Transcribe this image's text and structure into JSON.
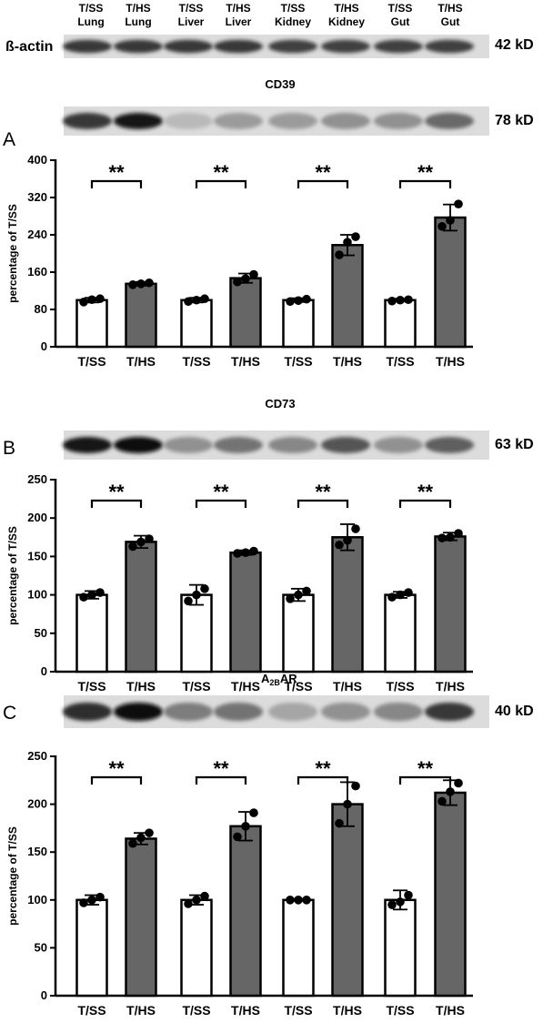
{
  "lane_labels": [
    {
      "top": "T/SS",
      "bottom": "Lung"
    },
    {
      "top": "T/HS",
      "bottom": "Lung"
    },
    {
      "top": "T/SS",
      "bottom": "Liver"
    },
    {
      "top": "T/HS",
      "bottom": "Liver"
    },
    {
      "top": "T/SS",
      "bottom": "Kidney"
    },
    {
      "top": "T/HS",
      "bottom": "Kidney"
    },
    {
      "top": "T/SS",
      "bottom": "Gut"
    },
    {
      "top": "T/HS",
      "bottom": "Gut"
    }
  ],
  "actin": {
    "label": "ß-actin",
    "kd": "42 kD"
  },
  "colors": {
    "ts_bar": "#ffffff",
    "hs_bar": "#666666",
    "axis": "#000000",
    "point": "#000000"
  },
  "panels": [
    {
      "letter": "A",
      "protein": "CD39",
      "kd": "78 kD",
      "blot_intensity": [
        0.8,
        0.95,
        0.15,
        0.3,
        0.3,
        0.35,
        0.35,
        0.55
      ]
    },
    {
      "letter": "B",
      "protein": "CD73",
      "kd": "63 kD",
      "blot_intensity": [
        0.95,
        1.0,
        0.35,
        0.5,
        0.4,
        0.65,
        0.35,
        0.6
      ]
    },
    {
      "letter": "C",
      "protein_main": "A",
      "protein_sub": "2B",
      "protein_tail": "AR",
      "kd": "40 kD",
      "blot_intensity": [
        0.85,
        1.0,
        0.45,
        0.5,
        0.25,
        0.35,
        0.4,
        0.8
      ]
    }
  ],
  "chart_data": [
    {
      "type": "bar",
      "ylabel": "percentage of T/SS",
      "categories": [
        "T/SS",
        "T/HS",
        "T/SS",
        "T/HS",
        "T/SS",
        "T/HS",
        "T/SS",
        "T/HS"
      ],
      "values": [
        100,
        135,
        100,
        147,
        100,
        218,
        100,
        277
      ],
      "errors": [
        5,
        4,
        5,
        10,
        4,
        22,
        3,
        28
      ],
      "points": [
        [
          96,
          101,
          103
        ],
        [
          133,
          135,
          137
        ],
        [
          97,
          100,
          103
        ],
        [
          139,
          146,
          155
        ],
        [
          97,
          99,
          102
        ],
        [
          197,
          224,
          236
        ],
        [
          98,
          100,
          101
        ],
        [
          258,
          271,
          306
        ]
      ],
      "yticks": [
        0,
        80,
        160,
        240,
        320,
        400
      ],
      "ylim": [
        0,
        400
      ],
      "significance": [
        "**",
        "**",
        "**",
        "**"
      ]
    },
    {
      "type": "bar",
      "ylabel": "percentage of T/SS",
      "categories": [
        "T/SS",
        "T/HS",
        "T/SS",
        "T/HS",
        "T/SS",
        "T/HS",
        "T/SS",
        "T/HS"
      ],
      "values": [
        100,
        169,
        100,
        155,
        100,
        175,
        100,
        176
      ],
      "errors": [
        5,
        8,
        13,
        3,
        8,
        17,
        4,
        5
      ],
      "points": [
        [
          97,
          100,
          103
        ],
        [
          163,
          169,
          173
        ],
        [
          92,
          100,
          108
        ],
        [
          154,
          155,
          157
        ],
        [
          95,
          100,
          105
        ],
        [
          165,
          171,
          186
        ],
        [
          97,
          100,
          103
        ],
        [
          174,
          175,
          180
        ]
      ],
      "yticks": [
        0,
        50,
        100,
        150,
        200,
        250
      ],
      "ylim": [
        0,
        250
      ],
      "significance": [
        "**",
        "**",
        "**",
        "**"
      ]
    },
    {
      "type": "bar",
      "ylabel": "percentage of T/SS",
      "categories": [
        "T/SS",
        "T/HS",
        "T/SS",
        "T/HS",
        "T/SS",
        "T/HS",
        "T/SS",
        "T/HS"
      ],
      "values": [
        100,
        164,
        100,
        177,
        100,
        200,
        100,
        212
      ],
      "errors": [
        5,
        6,
        5,
        15,
        1,
        23,
        10,
        13
      ],
      "points": [
        [
          97,
          100,
          103
        ],
        [
          159,
          165,
          170
        ],
        [
          96,
          100,
          104
        ],
        [
          166,
          177,
          191
        ],
        [
          100,
          100,
          100
        ],
        [
          180,
          200,
          219
        ],
        [
          95,
          98,
          105
        ],
        [
          203,
          213,
          222
        ]
      ],
      "yticks": [
        0,
        50,
        100,
        150,
        200,
        250
      ],
      "ylim": [
        0,
        250
      ],
      "significance": [
        "**",
        "**",
        "**",
        "**"
      ]
    }
  ]
}
